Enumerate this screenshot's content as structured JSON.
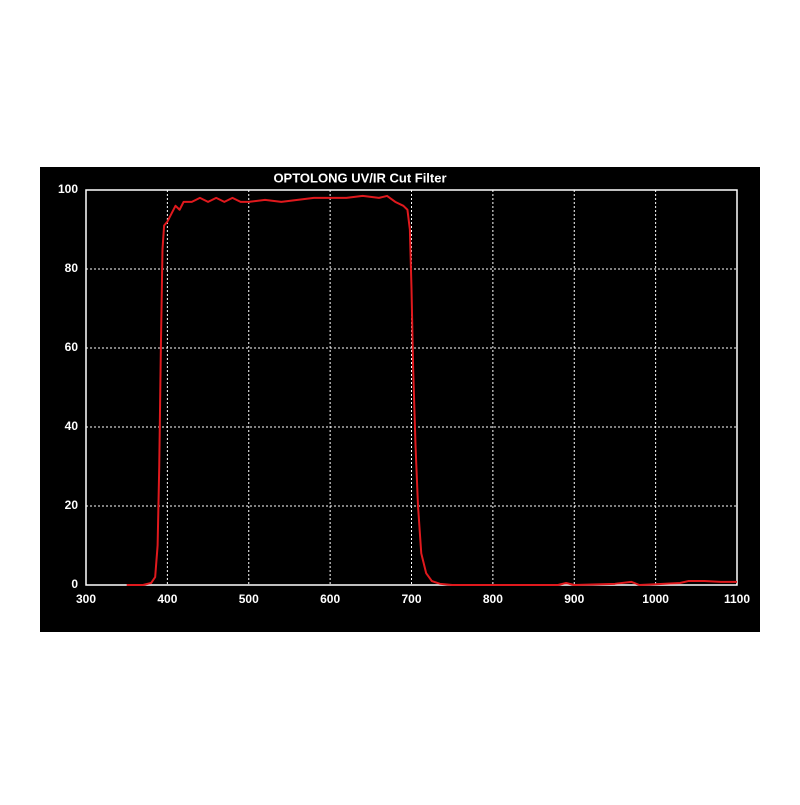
{
  "chart_data": {
    "type": "line",
    "title": "OPTOLONG UV/IR Cut Filter",
    "x": [
      350,
      370,
      380,
      385,
      388,
      390,
      392,
      394,
      396,
      400,
      405,
      410,
      415,
      420,
      430,
      440,
      450,
      460,
      470,
      480,
      490,
      500,
      520,
      540,
      560,
      580,
      600,
      620,
      640,
      660,
      670,
      680,
      690,
      695,
      698,
      700,
      702,
      705,
      708,
      712,
      718,
      725,
      735,
      750,
      800,
      880,
      890,
      900,
      950,
      970,
      980,
      1000,
      1030,
      1040,
      1060,
      1080,
      1100
    ],
    "series": [
      {
        "color": "#e0191d",
        "values": [
          0,
          0,
          0.5,
          2,
          10,
          30,
          60,
          85,
          91,
          92,
          94,
          96,
          95,
          97,
          97,
          98,
          97,
          98,
          97,
          98,
          97,
          97,
          97.5,
          97,
          97.5,
          98,
          98,
          98,
          98.5,
          98,
          98.5,
          97,
          96,
          95,
          90,
          75,
          55,
          35,
          20,
          8,
          3,
          1,
          0.3,
          0,
          0,
          0,
          0.5,
          0,
          0.3,
          0.8,
          0,
          0.2,
          0.5,
          1,
          1,
          0.8,
          0.8
        ]
      }
    ],
    "xlim": [
      300,
      1100
    ],
    "xticks": [
      300,
      400,
      500,
      600,
      700,
      800,
      900,
      1000,
      1100
    ],
    "ylim": [
      0,
      100
    ],
    "yticks": [
      0,
      20,
      40,
      60,
      80,
      100
    ],
    "grid": true
  }
}
